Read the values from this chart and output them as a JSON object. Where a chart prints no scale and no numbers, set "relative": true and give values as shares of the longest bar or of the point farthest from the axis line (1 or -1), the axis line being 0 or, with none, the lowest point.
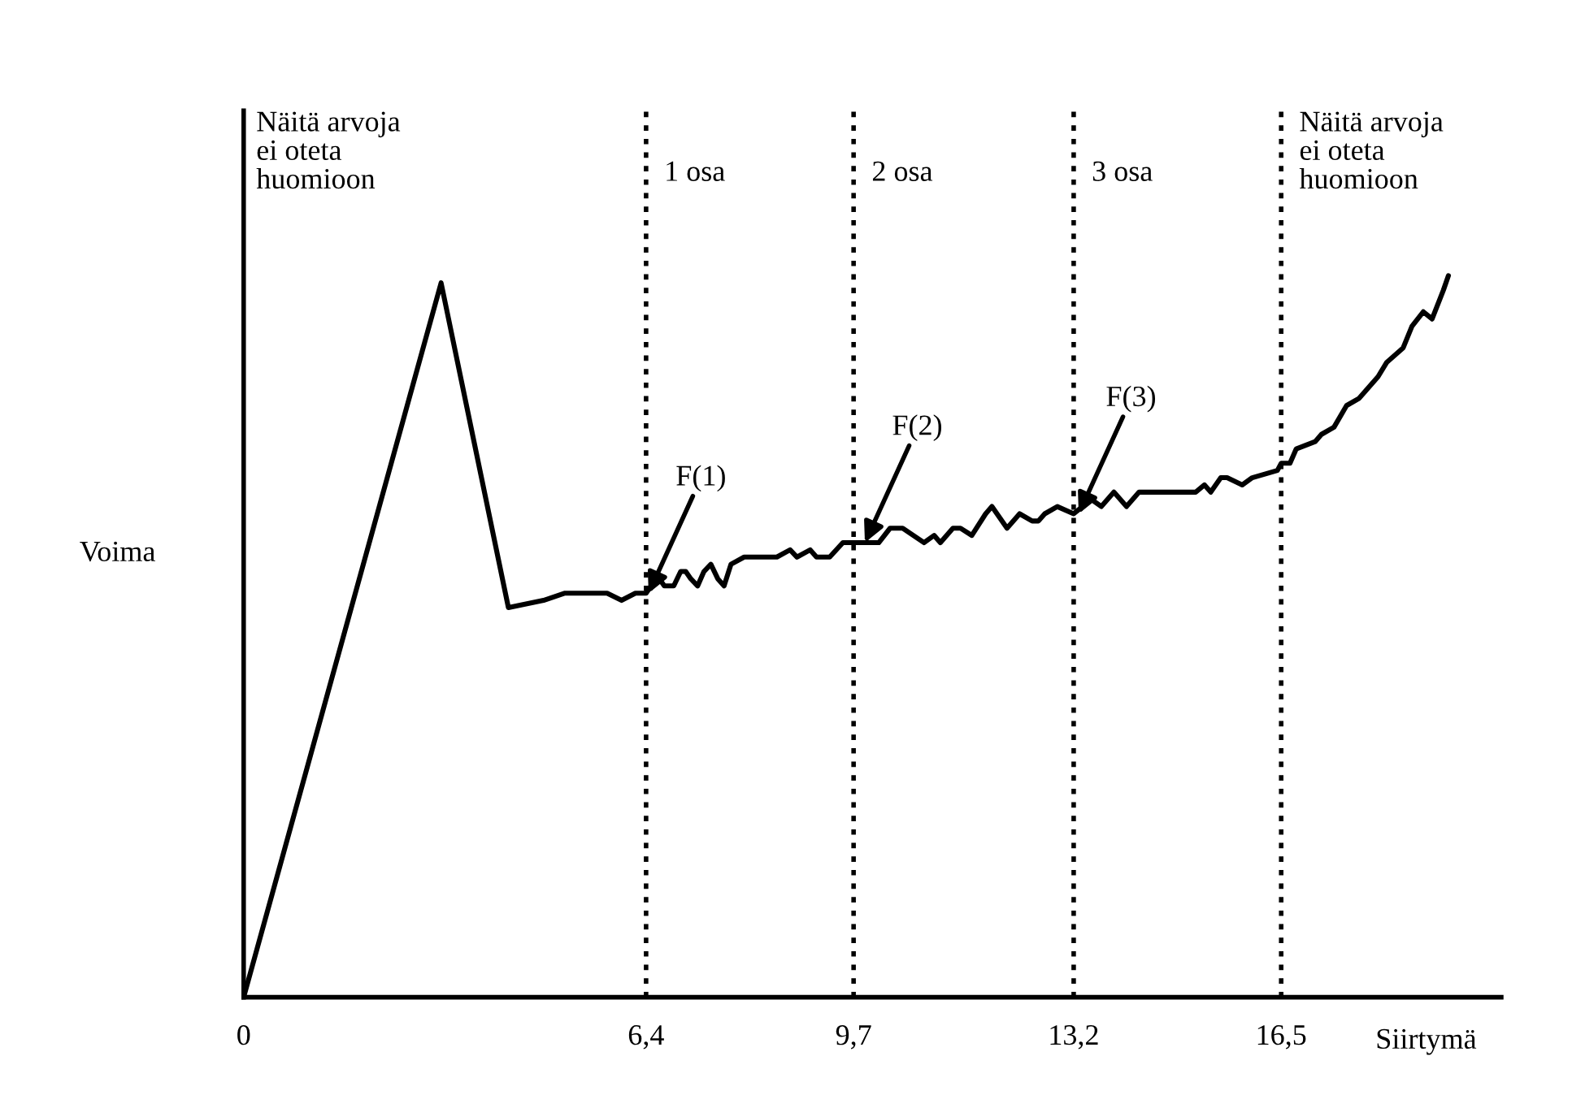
{
  "chart_data": {
    "type": "line",
    "relative": true,
    "xlabel": "Siirtymä",
    "ylabel": "Voima",
    "xlim": [
      0,
      20
    ],
    "xticks": [
      0,
      {
        "value": 6.4,
        "label": "6,4"
      },
      {
        "value": 9.7,
        "label": "9,7"
      },
      {
        "value": 13.2,
        "label": "13,2"
      },
      {
        "value": 16.5,
        "label": "16,5"
      }
    ],
    "series": [
      {
        "color": "#000000",
        "x": [
          0,
          3.14,
          4.21,
          4.77,
          5.11,
          5.39,
          5.61,
          5.78,
          6.01,
          6.23,
          6.4,
          6.48,
          6.61,
          6.69,
          6.84,
          6.95,
          7.03,
          7.11,
          7.22,
          7.32,
          7.43,
          7.54,
          7.64,
          7.75,
          7.96,
          8.17,
          8.38,
          8.48,
          8.69,
          8.8,
          9.01,
          9.11,
          9.32,
          9.53,
          9.7,
          9.88,
          10.1,
          10.28,
          10.48,
          10.82,
          10.98,
          11.08,
          11.28,
          11.4,
          11.58,
          11.8,
          11.9,
          12.14,
          12.34,
          12.54,
          12.64,
          12.74,
          12.94,
          13.2,
          13.34,
          13.48,
          13.64,
          13.84,
          14.04,
          14.24,
          14.54,
          14.74,
          14.96,
          15.14,
          15.28,
          15.38,
          15.54,
          15.64,
          15.88,
          16.04,
          16.44,
          16.5,
          16.64,
          16.74,
          17.04,
          17.14,
          17.34,
          17.54,
          17.74,
          18.04,
          18.18,
          18.44,
          18.58,
          18.76,
          18.9,
          19.08,
          19.16
        ],
        "values": [
          0,
          0.99,
          0.54,
          0.55,
          0.56,
          0.56,
          0.56,
          0.56,
          0.55,
          0.56,
          0.56,
          0.57,
          0.58,
          0.57,
          0.57,
          0.59,
          0.59,
          0.58,
          0.57,
          0.59,
          0.6,
          0.58,
          0.57,
          0.6,
          0.61,
          0.61,
          0.61,
          0.61,
          0.62,
          0.61,
          0.62,
          0.61,
          0.61,
          0.63,
          0.63,
          0.63,
          0.63,
          0.65,
          0.65,
          0.63,
          0.64,
          0.63,
          0.65,
          0.65,
          0.64,
          0.67,
          0.68,
          0.65,
          0.67,
          0.66,
          0.66,
          0.67,
          0.68,
          0.67,
          0.68,
          0.69,
          0.68,
          0.7,
          0.68,
          0.7,
          0.7,
          0.7,
          0.7,
          0.7,
          0.71,
          0.7,
          0.72,
          0.72,
          0.71,
          0.72,
          0.73,
          0.74,
          0.74,
          0.76,
          0.77,
          0.78,
          0.79,
          0.82,
          0.83,
          0.86,
          0.88,
          0.9,
          0.93,
          0.95,
          0.94,
          0.98,
          1
        ]
      }
    ],
    "ref_lines": [
      {
        "axis": "x",
        "value": 6.4,
        "color": "#000000",
        "line_style": "dotted"
      },
      {
        "axis": "x",
        "value": 9.7,
        "color": "#000000",
        "line_style": "dotted"
      },
      {
        "axis": "x",
        "value": 13.2,
        "color": "#000000",
        "line_style": "dotted"
      },
      {
        "axis": "x",
        "value": 16.5,
        "color": "#000000",
        "line_style": "dotted"
      }
    ],
    "annotations": [
      "Näitä arvoja\nei oteta\nhuomioon",
      "1 osa",
      "2 osa",
      "3 osa",
      "Näitä arvoja\nei oteta\nhuomioon",
      {
        "text": "F(1)",
        "x": 6.44,
        "y": 0.56
      },
      {
        "text": "F(2)",
        "x": 9.88,
        "y": 0.63
      },
      {
        "text": "F(3)",
        "x": 13.28,
        "y": 0.67
      }
    ],
    "grid": false,
    "legend": false
  }
}
